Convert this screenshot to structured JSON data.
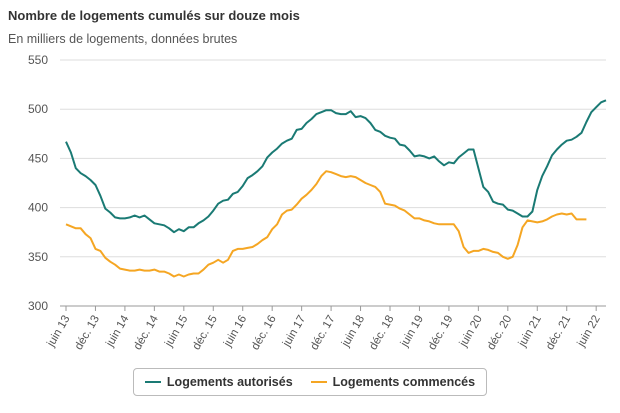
{
  "chart_data": {
    "type": "line",
    "title": "Nombre de logements cumulés sur douze mois",
    "subtitle": "En milliers de logements, données brutes",
    "ylim": [
      300,
      550
    ],
    "y_ticks": [
      300,
      350,
      400,
      450,
      500,
      550
    ],
    "x_tick_labels": [
      "juin 13",
      "déc. 13",
      "juin 14",
      "déc. 14",
      "juin 15",
      "déc. 15",
      "juin 16",
      "déc. 16",
      "juin 17",
      "déc. 17",
      "juin 18",
      "déc. 18",
      "juin 19",
      "déc. 19",
      "juin 20",
      "déc. 20",
      "juin 21",
      "déc. 21",
      "juin 22"
    ],
    "grid": "horizontal",
    "legend_position": "bottom",
    "series": [
      {
        "name": "Logements autorisés",
        "color": "#1a7a74",
        "values": [
          467,
          456,
          440,
          435,
          432,
          428,
          423,
          412,
          399,
          395,
          390,
          389,
          389,
          390,
          392,
          390,
          392,
          388,
          384,
          383,
          382,
          379,
          375,
          378,
          376,
          380,
          380,
          384,
          387,
          391,
          397,
          404,
          407,
          408,
          414,
          416,
          422,
          430,
          433,
          437,
          442,
          451,
          456,
          460,
          465,
          468,
          470,
          479,
          480,
          486,
          490,
          495,
          497,
          499,
          499,
          496,
          495,
          495,
          498,
          492,
          493,
          491,
          486,
          479,
          477,
          473,
          471,
          470,
          464,
          463,
          458,
          452,
          453,
          452,
          450,
          452,
          447,
          443,
          446,
          445,
          451,
          455,
          459,
          459,
          440,
          421,
          416,
          406,
          404,
          403,
          398,
          397,
          394,
          391,
          391,
          396,
          418,
          432,
          442,
          453,
          459,
          464,
          468,
          469,
          472,
          476,
          487,
          497,
          502,
          507,
          509
        ]
      },
      {
        "name": "Logements commencés",
        "color": "#f5a623",
        "values": [
          383,
          381,
          379,
          379,
          373,
          369,
          358,
          356,
          349,
          345,
          342,
          338,
          337,
          336,
          336,
          337,
          336,
          336,
          337,
          335,
          335,
          333,
          330,
          332,
          330,
          332,
          333,
          333,
          337,
          342,
          344,
          347,
          344,
          347,
          356,
          358,
          358,
          359,
          360,
          363,
          367,
          370,
          378,
          383,
          393,
          397,
          398,
          403,
          409,
          413,
          418,
          424,
          432,
          437,
          436,
          434,
          432,
          431,
          432,
          431,
          428,
          425,
          423,
          421,
          416,
          404,
          403,
          402,
          399,
          397,
          393,
          389,
          389,
          387,
          386,
          384,
          383,
          383,
          383,
          383,
          376,
          360,
          354,
          356,
          356,
          358,
          357,
          355,
          354,
          350,
          348,
          350,
          362,
          380,
          387,
          386,
          385,
          386,
          388,
          391,
          393,
          394,
          393,
          394,
          388,
          388,
          388
        ]
      }
    ]
  },
  "legend": {
    "item1": "Logements autorisés",
    "item2": "Logements commencés"
  }
}
